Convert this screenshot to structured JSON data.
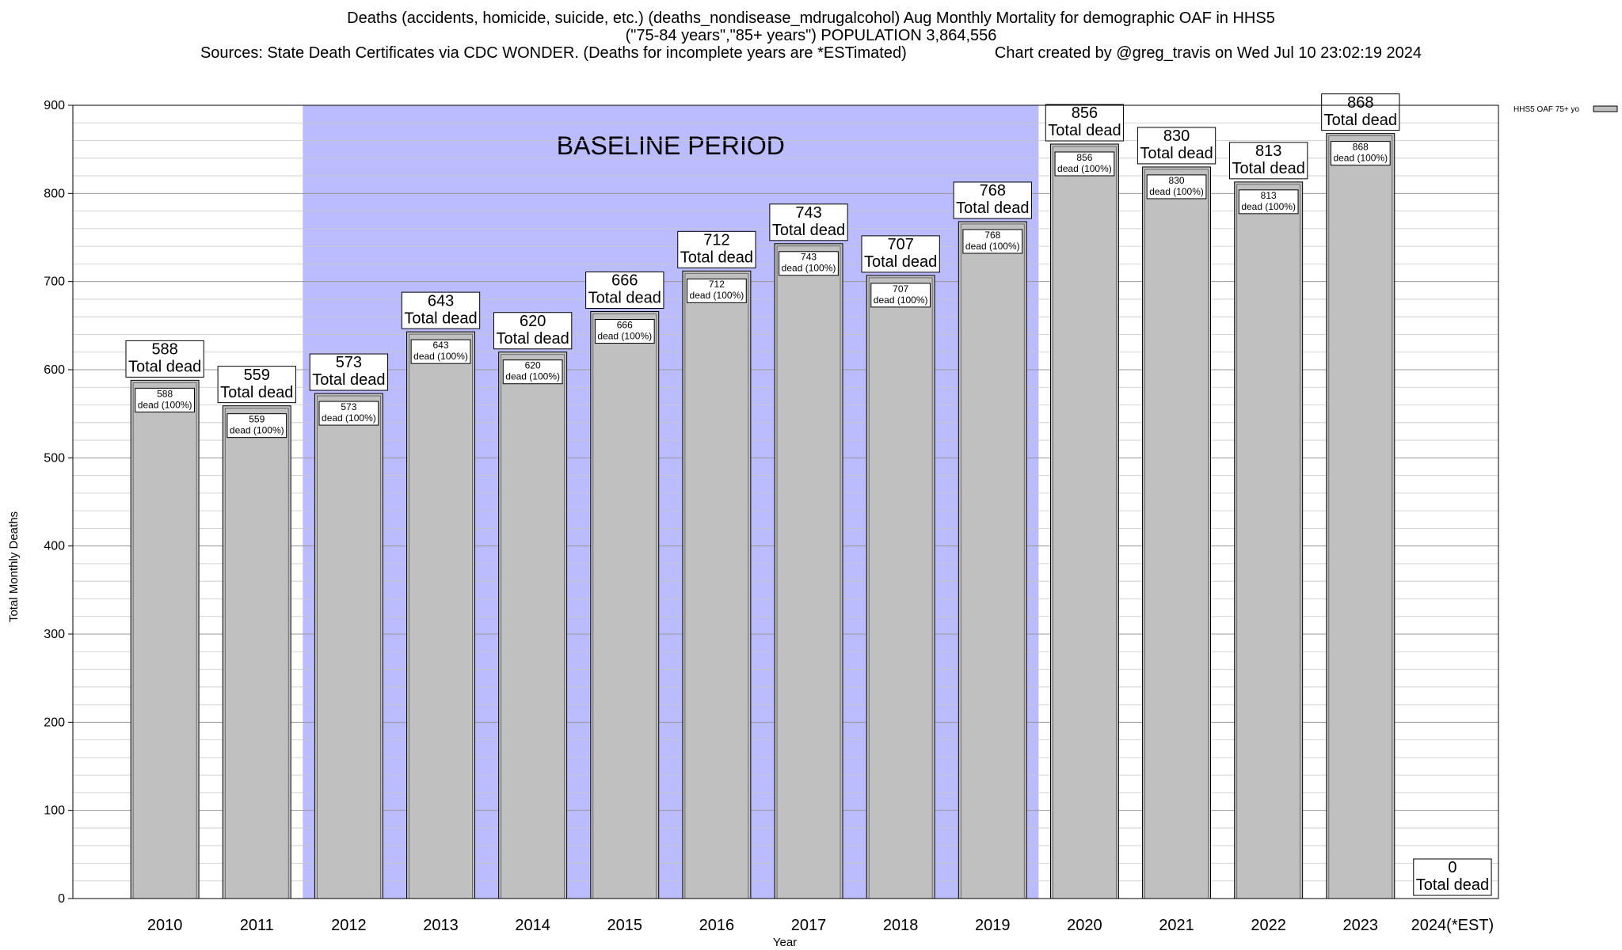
{
  "chart_data": {
    "type": "bar",
    "title": "Deaths (accidents, homicide, suicide, etc.) (deaths_nondisease_mdrugalcohol) Aug Monthly Mortality for demographic OAF in HHS5",
    "subtitle": "(\"75-84 years\",\"85+ years\") POPULATION 3,864,556",
    "sources": "Sources: State Death Certificates via CDC WONDER. (Deaths for incomplete years are *ESTimated)",
    "credit": "Chart created by @greg_travis on Wed Jul 10 23:02:19 2024",
    "xlabel": "Year",
    "ylabel": "Total Monthly Deaths",
    "ylim": [
      0,
      900
    ],
    "yticks": [
      "0",
      "100",
      "200",
      "300",
      "400",
      "500",
      "600",
      "700",
      "800",
      "900"
    ],
    "categories": [
      "2010",
      "2011",
      "2012",
      "2013",
      "2014",
      "2015",
      "2016",
      "2017",
      "2018",
      "2019",
      "2020",
      "2021",
      "2022",
      "2023",
      "2024(*EST)"
    ],
    "series": [
      {
        "name": "HHS5 OAF 75+ yo",
        "values": [
          588,
          559,
          573,
          643,
          620,
          666,
          712,
          743,
          707,
          768,
          856,
          830,
          813,
          868,
          0
        ]
      }
    ],
    "top_labels": [
      "588",
      "559",
      "573",
      "643",
      "620",
      "666",
      "712",
      "743",
      "707",
      "768",
      "856",
      "830",
      "813",
      "868",
      "0"
    ],
    "top_label_suffix": "Total dead",
    "inner_labels": [
      "588",
      "559",
      "573",
      "643",
      "620",
      "666",
      "712",
      "743",
      "707",
      "768",
      "856",
      "830",
      "813",
      "868"
    ],
    "inner_label_suffix": "dead (100%)",
    "baseline": {
      "label": "BASELINE PERIOD",
      "from": "2012",
      "to": "2019"
    },
    "legend_position": "top-right",
    "grid": true,
    "colors": {
      "bar": "#c0c0c0",
      "baseline": "#bbbbff",
      "grid": "#b0b0b0"
    }
  }
}
